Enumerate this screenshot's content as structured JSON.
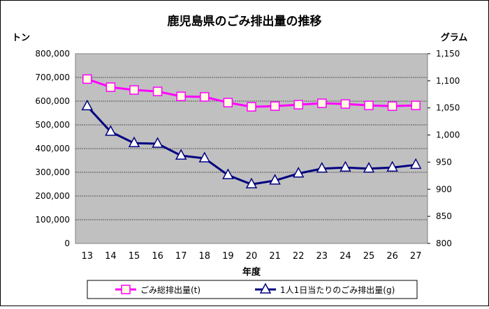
{
  "chart_data": {
    "type": "line",
    "title": "鹿児島県のごみ排出量の推移",
    "xlabel": "年度",
    "ylabel_left": "トン",
    "ylabel_right": "グラム",
    "categories": [
      "13",
      "14",
      "15",
      "16",
      "17",
      "18",
      "19",
      "20",
      "21",
      "22",
      "23",
      "24",
      "25",
      "26",
      "27"
    ],
    "y_left": {
      "lim": [
        0,
        800000
      ],
      "ticks": [
        "0",
        "100,000",
        "200,000",
        "300,000",
        "400,000",
        "500,000",
        "600,000",
        "700,000",
        "800,000"
      ]
    },
    "y_right": {
      "lim": [
        800,
        1150
      ],
      "ticks": [
        "800",
        "850",
        "900",
        "950",
        "1,000",
        "1,050",
        "1,100",
        "1,150"
      ]
    },
    "grid": true,
    "legend_position": "bottom",
    "series": [
      {
        "name": "ごみ総排出量(t)",
        "axis": "left",
        "marker": "square",
        "color": "#ff00ff",
        "values": [
          693000,
          659000,
          647000,
          641000,
          620000,
          618000,
          594000,
          576000,
          579000,
          585000,
          591000,
          588000,
          582000,
          579000,
          582000
        ]
      },
      {
        "name": "1人1日当たりのごみ排出量(g)",
        "axis": "right",
        "marker": "triangle",
        "color": "#000080",
        "values": [
          1053,
          1006,
          985,
          984,
          962,
          957,
          926,
          909,
          916,
          929,
          938,
          940,
          938,
          940,
          945
        ]
      }
    ]
  }
}
